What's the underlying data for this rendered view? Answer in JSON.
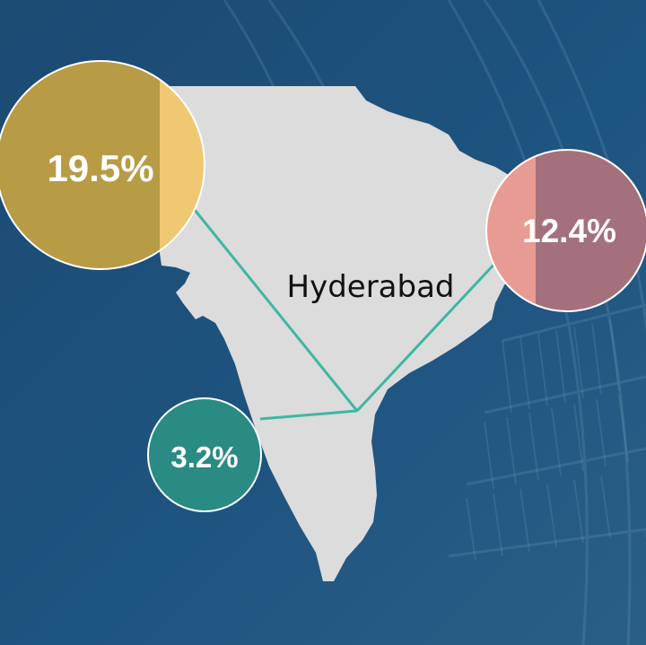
{
  "map": {
    "region_label": "Hyderabad",
    "colors": {
      "background": "#1d4f78",
      "land": "#dcdcdc",
      "connector": "#3fb6a1",
      "bubble_border": "#ffffff"
    }
  },
  "bubbles": [
    {
      "value_label": "19.5%",
      "color": "#b79b45",
      "accent_color": "#f0c871"
    },
    {
      "value_label": "12.4%",
      "color": "#a4707b",
      "accent_color": "#e89b93"
    },
    {
      "value_label": "3.2%",
      "color": "#2a8a84"
    }
  ]
}
